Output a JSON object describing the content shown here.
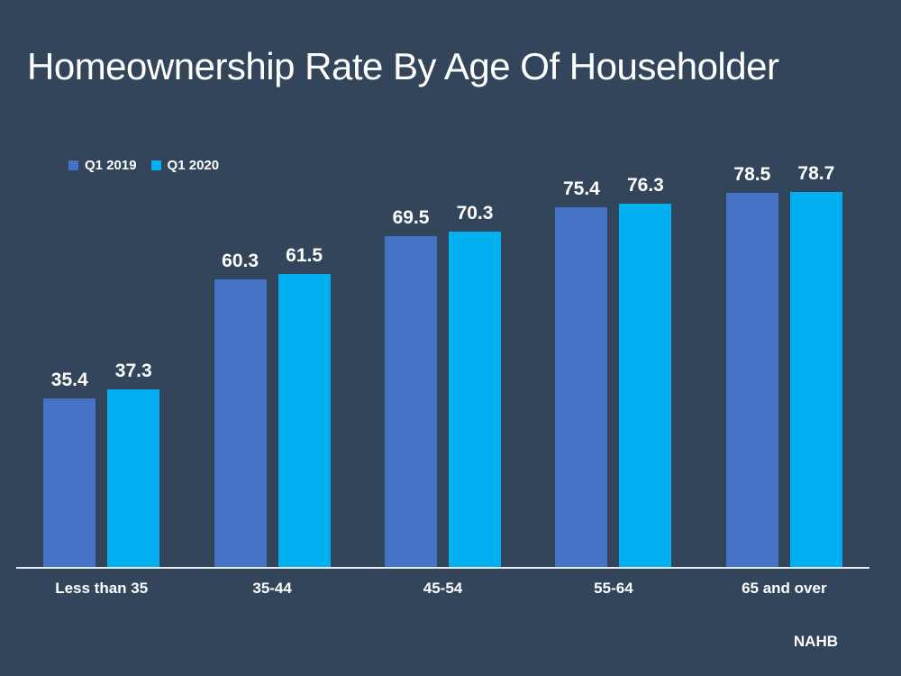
{
  "slide": {
    "title": "Homeownership Rate By Age Of Householder",
    "footer": "NAHB",
    "background_color": "#32455A",
    "text_color": "#FFFFFF",
    "axis_line_color": "#E8ECF0"
  },
  "chart_data": {
    "type": "bar",
    "title": "Homeownership Rate By Age Of Householder",
    "categories": [
      "Less than 35",
      "35-44",
      "45-54",
      "55-64",
      "65 and over"
    ],
    "series": [
      {
        "name": "Q1 2019",
        "color": "#4472C4",
        "values": [
          35.4,
          60.3,
          69.5,
          75.4,
          78.5
        ]
      },
      {
        "name": "Q1 2020",
        "color": "#00B0F0",
        "values": [
          37.3,
          61.5,
          70.3,
          76.3,
          78.7
        ]
      }
    ],
    "ylim": [
      0,
      87
    ],
    "value_labels": true,
    "grid": false,
    "legend_position": "top-left",
    "source": "NAHB"
  }
}
